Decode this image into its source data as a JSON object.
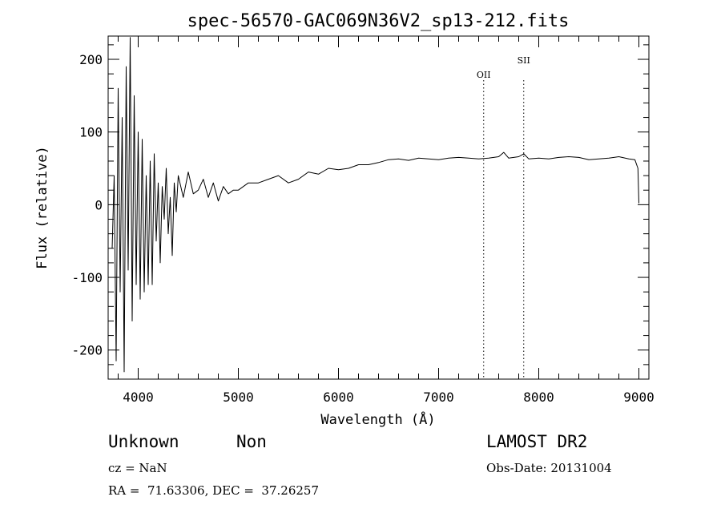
{
  "chart_data": {
    "type": "line",
    "title": "spec-56570-GAC069N36V2_sp13-212.fits",
    "xlabel": "Wavelength (Å)",
    "ylabel": "Flux (relative)",
    "xlim": [
      3700,
      9100
    ],
    "ylim": [
      -240,
      232
    ],
    "xticks": [
      4000,
      5000,
      6000,
      7000,
      8000,
      9000
    ],
    "yticks": [
      -200,
      -100,
      0,
      100,
      200
    ],
    "grid": false,
    "line_color": "#000000",
    "series": [
      {
        "x": [
          3740,
          3760,
          3780,
          3800,
          3820,
          3840,
          3860,
          3880,
          3900,
          3920,
          3940,
          3960,
          3980,
          4000,
          4020,
          4040,
          4060,
          4080,
          4100,
          4120,
          4140,
          4160,
          4180,
          4200,
          4220,
          4240,
          4260,
          4280,
          4300,
          4320,
          4340,
          4360,
          4380,
          4400,
          4450,
          4500,
          4550,
          4600,
          4650,
          4700,
          4750,
          4800,
          4850,
          4900,
          4950,
          5000,
          5100,
          5200,
          5300,
          5400,
          5500,
          5600,
          5700,
          5800,
          5900,
          6000,
          6100,
          6200,
          6300,
          6400,
          6500,
          6600,
          6700,
          6800,
          6900,
          7000,
          7100,
          7200,
          7300,
          7400,
          7500,
          7600,
          7650,
          7700,
          7800,
          7850,
          7900,
          8000,
          8100,
          8200,
          8300,
          8400,
          8500,
          8600,
          8700,
          8800,
          8900,
          8960,
          8990,
          9000
        ],
        "y": [
          -60,
          40,
          -215,
          160,
          -120,
          120,
          -230,
          190,
          -90,
          230,
          -160,
          150,
          -110,
          100,
          -130,
          90,
          -120,
          40,
          -110,
          60,
          -110,
          70,
          -50,
          30,
          -80,
          25,
          -20,
          50,
          -40,
          10,
          -70,
          30,
          -10,
          40,
          10,
          45,
          15,
          20,
          35,
          10,
          30,
          5,
          25,
          15,
          20,
          20,
          30,
          30,
          35,
          40,
          30,
          35,
          45,
          42,
          50,
          48,
          50,
          55,
          55,
          58,
          62,
          63,
          61,
          64,
          63,
          62,
          64,
          65,
          64,
          63,
          64,
          66,
          72,
          64,
          66,
          70,
          63,
          64,
          63,
          65,
          66,
          65,
          62,
          63,
          64,
          66,
          63,
          62,
          50,
          2
        ]
      }
    ],
    "annotations": [
      {
        "label": "OII",
        "x": 7450
      },
      {
        "label": "SII",
        "x": 7850
      }
    ]
  },
  "info": {
    "classification": "Unknown",
    "subclass": "Non",
    "survey": "LAMOST DR2",
    "redshift": "cz = NaN",
    "obs_date": "Obs-Date: 20131004",
    "coords": "RA =  71.63306, DEC =  37.26257"
  }
}
